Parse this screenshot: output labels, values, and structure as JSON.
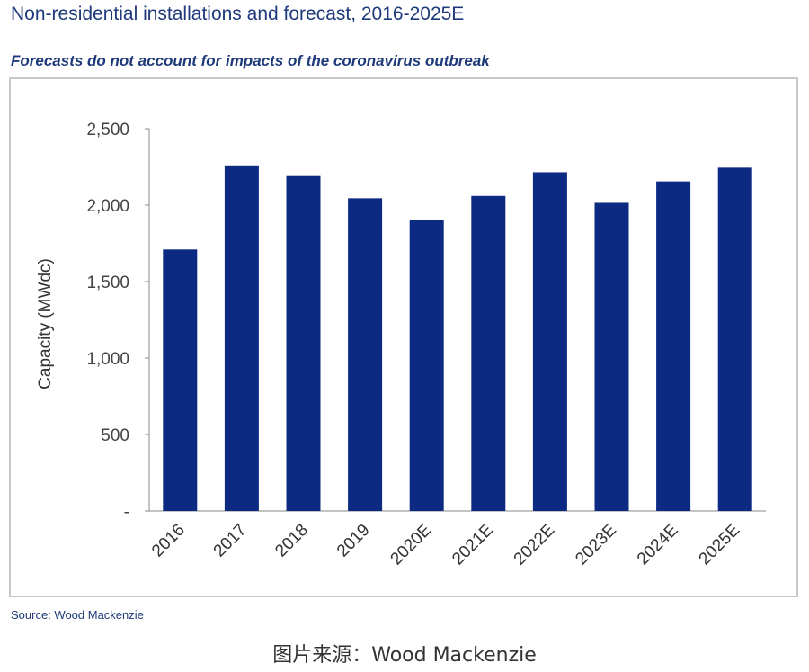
{
  "header": {
    "title": "Non-residential installations and forecast, 2016-2025E",
    "subtitle": "Forecasts do not account for impacts of the coronavirus outbreak"
  },
  "footer": {
    "source": "Source: Wood Mackenzie",
    "caption": "图片来源：Wood Mackenzie"
  },
  "colors": {
    "bar": "#0d2a83",
    "title": "#1f3a7a",
    "axis": "#8a8a8a"
  },
  "chart_data": {
    "type": "bar",
    "title": "Non-residential installations and forecast, 2016-2025E",
    "subtitle": "Forecasts do not account for impacts of the coronavirus outbreak",
    "xlabel": "",
    "ylabel": "Capacity (MWdc)",
    "ylim": [
      0,
      2500
    ],
    "yticks": [
      0,
      500,
      1000,
      1500,
      2000,
      2500
    ],
    "ytick_labels": [
      "-",
      "500",
      "1,000",
      "1,500",
      "2,000",
      "2,500"
    ],
    "categories": [
      "2016",
      "2017",
      "2018",
      "2019",
      "2020E",
      "2021E",
      "2022E",
      "2023E",
      "2024E",
      "2025E"
    ],
    "values": [
      1710,
      2260,
      2190,
      2045,
      1900,
      2060,
      2215,
      2015,
      2155,
      2245
    ],
    "grid": false,
    "legend": "none"
  }
}
